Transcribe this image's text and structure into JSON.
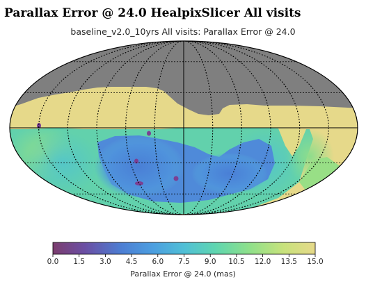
{
  "header": {
    "title": "Parallax Error @ 24.0 HealpixSlicer All visits",
    "subtitle": "baseline_v2.0_10yrs All visits: Parallax Error @ 24.0"
  },
  "colorbar": {
    "label": "Parallax Error @ 24.0 (mas)",
    "range": [
      0.0,
      15.0
    ],
    "tick_labels": [
      "0.0",
      "1.5",
      "3.0",
      "4.5",
      "6.0",
      "7.5",
      "9.0",
      "10.5",
      "12.0",
      "13.5",
      "15.0"
    ],
    "colormap_stops": [
      "#7b3d6e",
      "#6b4ea3",
      "#4d7ed3",
      "#4c9ee0",
      "#50bfd6",
      "#5fd6b0",
      "#8fe08a",
      "#c8e27c",
      "#e6d98a"
    ]
  },
  "map": {
    "projection": "mollweide",
    "no_data_color": "#7f7f7f",
    "grid": true
  },
  "chart_data": {
    "type": "heatmap",
    "title": "baseline_v2.0_10yrs All visits: Parallax Error @ 24.0",
    "colorbar_label": "Parallax Error @ 24.0 (mas)",
    "value_range": [
      0.0,
      15.0
    ],
    "projection": "mollweide",
    "grid": "on",
    "legend": "colorbar-bottom"
  }
}
